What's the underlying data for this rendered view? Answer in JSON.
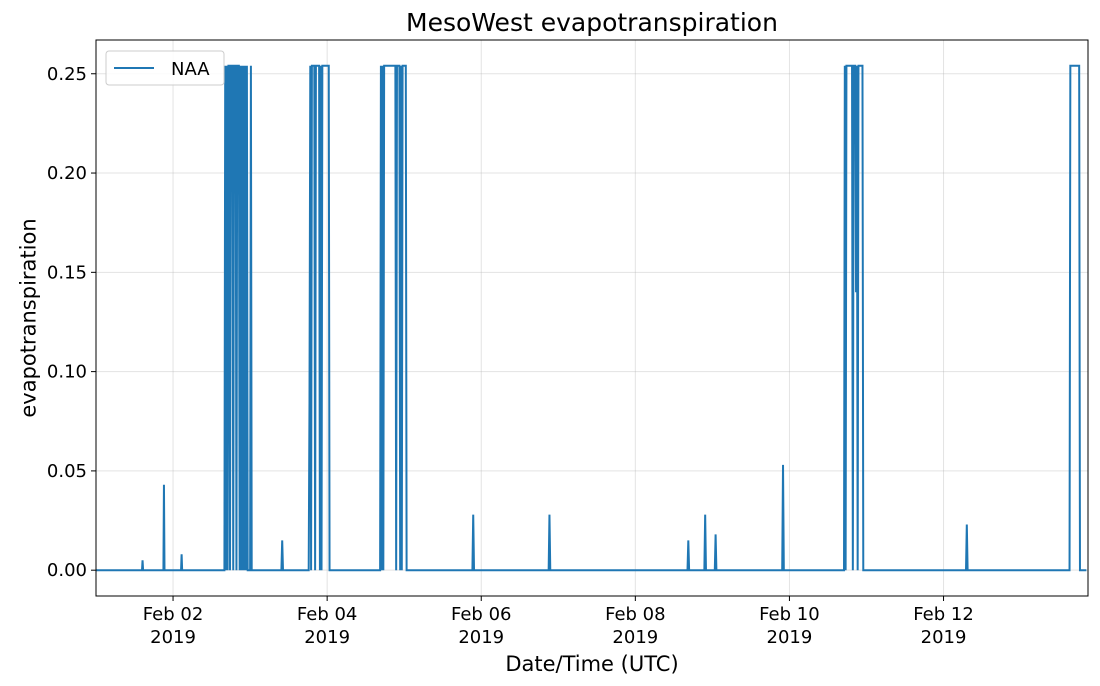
{
  "chart_data": {
    "type": "line",
    "title": "MesoWest evapotranspiration",
    "xlabel": "Date/Time (UTC)",
    "ylabel": "evapotranspiration",
    "xlim": [
      "2019-02-01T00:00",
      "2019-02-13T21:00"
    ],
    "ylim": [
      -0.013,
      0.267
    ],
    "grid": true,
    "legend_position": "top-left",
    "color": "#1f77b4",
    "x_ticks": [
      {
        "date": "2019-02-02T00:00",
        "line1": "Feb 02",
        "line2": "2019"
      },
      {
        "date": "2019-02-04T00:00",
        "line1": "Feb 04",
        "line2": "2019"
      },
      {
        "date": "2019-02-06T00:00",
        "line1": "Feb 06",
        "line2": "2019"
      },
      {
        "date": "2019-02-08T00:00",
        "line1": "Feb 08",
        "line2": "2019"
      },
      {
        "date": "2019-02-10T00:00",
        "line1": "Feb 10",
        "line2": "2019"
      },
      {
        "date": "2019-02-12T00:00",
        "line1": "Feb 12",
        "line2": "2019"
      }
    ],
    "y_ticks": [
      {
        "value": 0.0,
        "label": "0.00"
      },
      {
        "value": 0.05,
        "label": "0.05"
      },
      {
        "value": 0.1,
        "label": "0.10"
      },
      {
        "value": 0.15,
        "label": "0.15"
      },
      {
        "value": 0.2,
        "label": "0.20"
      },
      {
        "value": 0.25,
        "label": "0.25"
      }
    ],
    "series": [
      {
        "name": "NAA",
        "points": [
          [
            "2019-02-01T00:00",
            0
          ],
          [
            "2019-02-01T14:20",
            0
          ],
          [
            "2019-02-01T14:30",
            0.005
          ],
          [
            "2019-02-01T14:40",
            0
          ],
          [
            "2019-02-01T21:00",
            0
          ],
          [
            "2019-02-01T21:10",
            0.043
          ],
          [
            "2019-02-01T21:20",
            0
          ],
          [
            "2019-02-02T02:30",
            0
          ],
          [
            "2019-02-02T02:40",
            0.008
          ],
          [
            "2019-02-02T02:50",
            0
          ],
          [
            "2019-02-02T16:00",
            0
          ],
          [
            "2019-02-02T16:15",
            0.254
          ],
          [
            "2019-02-02T16:30",
            0
          ],
          [
            "2019-02-02T16:45",
            0.254
          ],
          [
            "2019-02-02T17:00",
            0
          ],
          [
            "2019-02-02T17:15",
            0.254
          ],
          [
            "2019-02-02T17:30",
            0.254
          ],
          [
            "2019-02-02T17:45",
            0
          ],
          [
            "2019-02-02T18:00",
            0.254
          ],
          [
            "2019-02-02T18:30",
            0.254
          ],
          [
            "2019-02-02T18:45",
            0
          ],
          [
            "2019-02-02T19:00",
            0.254
          ],
          [
            "2019-02-02T19:30",
            0.254
          ],
          [
            "2019-02-02T19:45",
            0
          ],
          [
            "2019-02-02T20:00",
            0.254
          ],
          [
            "2019-02-02T20:30",
            0.254
          ],
          [
            "2019-02-02T20:45",
            0
          ],
          [
            "2019-02-02T21:00",
            0.254
          ],
          [
            "2019-02-02T21:15",
            0
          ],
          [
            "2019-02-02T21:30",
            0.254
          ],
          [
            "2019-02-02T21:45",
            0
          ],
          [
            "2019-02-02T22:00",
            0.254
          ],
          [
            "2019-02-02T22:15",
            0
          ],
          [
            "2019-02-02T22:30",
            0.254
          ],
          [
            "2019-02-02T22:45",
            0
          ],
          [
            "2019-02-02T23:00",
            0.254
          ],
          [
            "2019-02-02T23:15",
            0
          ],
          [
            "2019-02-03T00:00",
            0
          ],
          [
            "2019-02-03T00:15",
            0.254
          ],
          [
            "2019-02-03T00:30",
            0
          ],
          [
            "2019-02-03T09:45",
            0
          ],
          [
            "2019-02-03T10:00",
            0.015
          ],
          [
            "2019-02-03T10:15",
            0
          ],
          [
            "2019-02-03T18:15",
            0
          ],
          [
            "2019-02-03T18:30",
            0.084
          ],
          [
            "2019-02-03T18:45",
            0.254
          ],
          [
            "2019-02-03T19:00",
            0
          ],
          [
            "2019-02-03T19:15",
            0.254
          ],
          [
            "2019-02-03T20:00",
            0.254
          ],
          [
            "2019-02-03T20:15",
            0
          ],
          [
            "2019-02-03T20:30",
            0.254
          ],
          [
            "2019-02-03T21:30",
            0.254
          ],
          [
            "2019-02-03T21:45",
            0
          ],
          [
            "2019-02-03T22:00",
            0.254
          ],
          [
            "2019-02-03T22:15",
            0
          ],
          [
            "2019-02-03T22:30",
            0.254
          ],
          [
            "2019-02-04T00:30",
            0.254
          ],
          [
            "2019-02-04T00:45",
            0
          ],
          [
            "2019-02-04T16:30",
            0
          ],
          [
            "2019-02-04T16:45",
            0.254
          ],
          [
            "2019-02-04T17:00",
            0
          ],
          [
            "2019-02-04T17:15",
            0.254
          ],
          [
            "2019-02-04T17:30",
            0
          ],
          [
            "2019-02-04T17:45",
            0.254
          ],
          [
            "2019-02-04T21:15",
            0.254
          ],
          [
            "2019-02-04T21:30",
            0
          ],
          [
            "2019-02-04T21:45",
            0.254
          ],
          [
            "2019-02-04T22:30",
            0.254
          ],
          [
            "2019-02-04T22:45",
            0
          ],
          [
            "2019-02-04T23:00",
            0.254
          ],
          [
            "2019-02-04T23:15",
            0
          ],
          [
            "2019-02-04T23:30",
            0.254
          ],
          [
            "2019-02-05T00:30",
            0.254
          ],
          [
            "2019-02-05T00:45",
            0
          ],
          [
            "2019-02-05T21:15",
            0
          ],
          [
            "2019-02-05T21:30",
            0.028
          ],
          [
            "2019-02-05T21:45",
            0
          ],
          [
            "2019-02-06T21:00",
            0
          ],
          [
            "2019-02-06T21:15",
            0.028
          ],
          [
            "2019-02-06T21:30",
            0
          ],
          [
            "2019-02-08T16:15",
            0
          ],
          [
            "2019-02-08T16:30",
            0.015
          ],
          [
            "2019-02-08T16:45",
            0
          ],
          [
            "2019-02-08T21:30",
            0
          ],
          [
            "2019-02-08T21:45",
            0.028
          ],
          [
            "2019-02-08T22:00",
            0
          ],
          [
            "2019-02-09T00:45",
            0
          ],
          [
            "2019-02-09T01:00",
            0.018
          ],
          [
            "2019-02-09T01:15",
            0
          ],
          [
            "2019-02-09T21:45",
            0
          ],
          [
            "2019-02-09T22:00",
            0.053
          ],
          [
            "2019-02-09T22:15",
            0
          ],
          [
            "2019-02-10T17:00",
            0
          ],
          [
            "2019-02-10T17:15",
            0.254
          ],
          [
            "2019-02-10T17:30",
            0
          ],
          [
            "2019-02-10T17:45",
            0.254
          ],
          [
            "2019-02-10T19:30",
            0.254
          ],
          [
            "2019-02-10T19:45",
            0
          ],
          [
            "2019-02-10T20:00",
            0.254
          ],
          [
            "2019-02-10T20:30",
            0.254
          ],
          [
            "2019-02-10T20:45",
            0.14
          ],
          [
            "2019-02-10T21:00",
            0.254
          ],
          [
            "2019-02-10T21:15",
            0
          ],
          [
            "2019-02-10T21:30",
            0.254
          ],
          [
            "2019-02-10T22:45",
            0.254
          ],
          [
            "2019-02-10T23:00",
            0
          ],
          [
            "2019-02-12T07:00",
            0
          ],
          [
            "2019-02-12T07:15",
            0.023
          ],
          [
            "2019-02-12T07:30",
            0
          ],
          [
            "2019-02-13T15:15",
            0
          ],
          [
            "2019-02-13T15:30",
            0.254
          ],
          [
            "2019-02-13T18:15",
            0.254
          ],
          [
            "2019-02-13T18:30",
            0
          ],
          [
            "2019-02-13T20:30",
            0
          ]
        ]
      }
    ]
  }
}
